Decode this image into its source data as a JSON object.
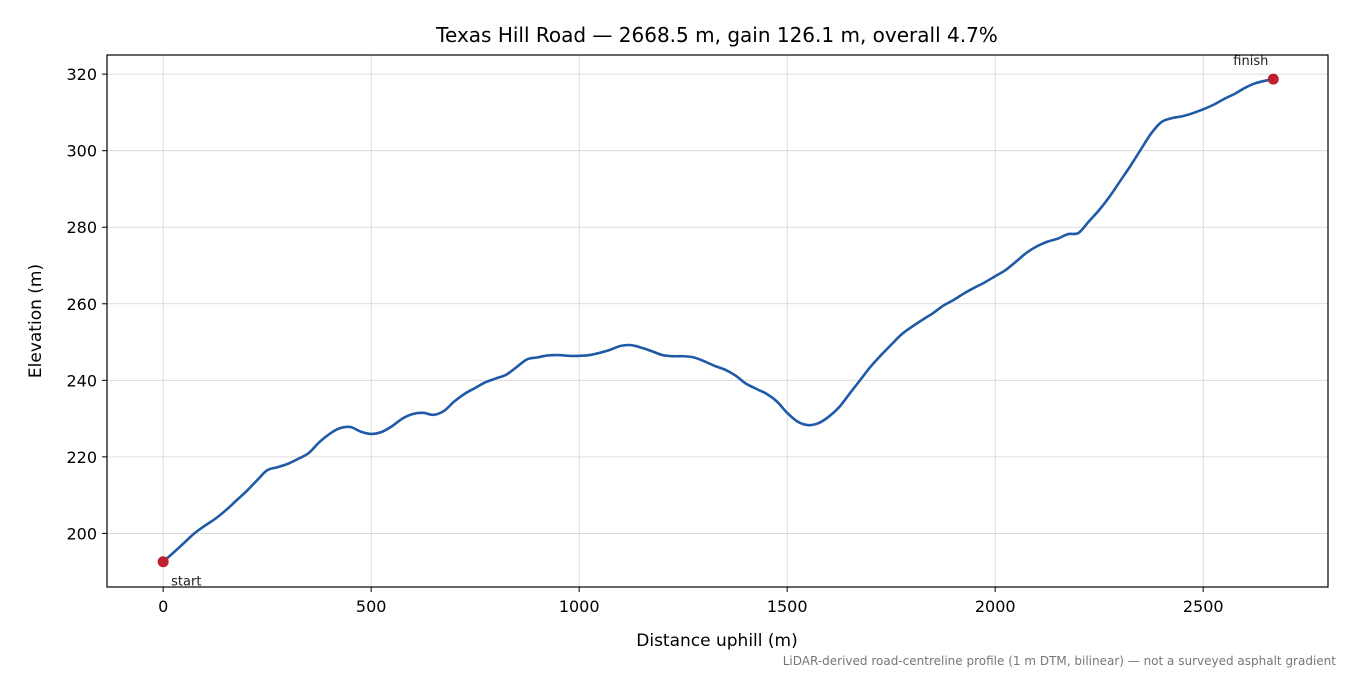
{
  "chart_data": {
    "type": "line",
    "title": "Texas Hill Road — 2668.5 m, gain 126.1 m, overall 4.7%",
    "xlabel": "Distance uphill (m)",
    "ylabel": "Elevation (m)",
    "xlim": [
      -135,
      2800
    ],
    "ylim": [
      186,
      325
    ],
    "xticks": [
      0,
      500,
      1000,
      1500,
      2000,
      2500
    ],
    "yticks": [
      200,
      220,
      240,
      260,
      280,
      300,
      320
    ],
    "grid": true,
    "line_color": "#1f5aa8",
    "marker_color": "#c0202e",
    "series": [
      {
        "x": [
          0,
          25,
          50,
          75,
          100,
          125,
          150,
          175,
          200,
          225,
          250,
          275,
          300,
          325,
          350,
          375,
          400,
          425,
          450,
          475,
          500,
          525,
          550,
          575,
          600,
          625,
          650,
          675,
          700,
          725,
          750,
          775,
          800,
          825,
          850,
          875,
          900,
          925,
          950,
          975,
          1000,
          1025,
          1050,
          1075,
          1100,
          1125,
          1150,
          1175,
          1200,
          1225,
          1250,
          1275,
          1300,
          1325,
          1350,
          1375,
          1400,
          1425,
          1450,
          1475,
          1500,
          1525,
          1550,
          1575,
          1600,
          1625,
          1650,
          1675,
          1700,
          1725,
          1750,
          1775,
          1800,
          1825,
          1850,
          1875,
          1900,
          1925,
          1950,
          1975,
          2000,
          2025,
          2050,
          2075,
          2100,
          2125,
          2150,
          2175,
          2200,
          2225,
          2250,
          2275,
          2300,
          2325,
          2350,
          2375,
          2400,
          2425,
          2450,
          2475,
          2500,
          2525,
          2550,
          2575,
          2600,
          2625,
          2650,
          2668.5
        ],
        "y": [
          192.6,
          195.0,
          197.5,
          200.0,
          202.0,
          203.8,
          206.0,
          208.5,
          211.0,
          213.8,
          216.5,
          217.3,
          218.2,
          219.5,
          221.0,
          223.8,
          226.0,
          227.5,
          227.8,
          226.6,
          226.0,
          226.5,
          228.0,
          230.0,
          231.2,
          231.5,
          231.0,
          232.0,
          234.5,
          236.5,
          238.0,
          239.5,
          240.5,
          241.5,
          243.5,
          245.5,
          246.0,
          246.5,
          246.6,
          246.4,
          246.4,
          246.6,
          247.2,
          248.0,
          249.0,
          249.2,
          248.5,
          247.6,
          246.6,
          246.3,
          246.3,
          246.0,
          245.0,
          243.8,
          242.8,
          241.3,
          239.2,
          237.8,
          236.5,
          234.5,
          231.5,
          229.2,
          228.3,
          228.8,
          230.5,
          233.0,
          236.5,
          240.0,
          243.5,
          246.5,
          249.3,
          252.0,
          254.0,
          255.8,
          257.5,
          259.5,
          261.0,
          262.7,
          264.2,
          265.6,
          267.2,
          268.8,
          271.0,
          273.3,
          275.0,
          276.2,
          277.0,
          278.2,
          278.5,
          281.5,
          284.5,
          288.0,
          292.0,
          296.0,
          300.3,
          304.5,
          307.5,
          308.5,
          309.0,
          309.8,
          310.8,
          312.0,
          313.5,
          314.8,
          316.4,
          317.6,
          318.3,
          318.7
        ]
      }
    ],
    "annotations": [
      {
        "text": "start",
        "x": 0,
        "y": 192.6
      },
      {
        "text": "finish",
        "x": 2668.5,
        "y": 318.7
      }
    ],
    "footnote": "LiDAR-derived road-centreline profile (1 m DTM, bilinear) — not a surveyed asphalt gradient"
  }
}
